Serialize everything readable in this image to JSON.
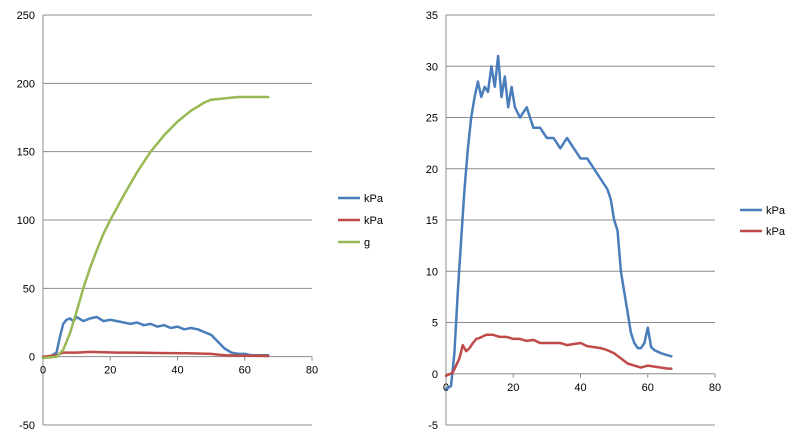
{
  "chart_data": [
    {
      "type": "line",
      "title": "",
      "xlabel": "",
      "ylabel": "",
      "xlim": [
        0,
        80
      ],
      "ylim": [
        -50,
        250
      ],
      "x_ticks": [
        "0",
        "20",
        "40",
        "60",
        "80"
      ],
      "y_ticks": [
        "-50",
        "0",
        "50",
        "100",
        "150",
        "200",
        "250"
      ],
      "grid": "horizontal",
      "legend_position": "right",
      "series": [
        {
          "name": "kPa",
          "color": "#4a7ebb",
          "points": [
            [
              0,
              -1
            ],
            [
              2,
              0
            ],
            [
              4,
              3
            ],
            [
              5,
              14
            ],
            [
              6,
              24
            ],
            [
              7,
              27
            ],
            [
              8,
              28
            ],
            [
              9,
              26
            ],
            [
              10,
              29
            ],
            [
              12,
              26
            ],
            [
              14,
              28
            ],
            [
              16,
              29
            ],
            [
              18,
              26
            ],
            [
              20,
              27
            ],
            [
              22,
              26
            ],
            [
              24,
              25
            ],
            [
              26,
              24
            ],
            [
              28,
              25
            ],
            [
              30,
              23
            ],
            [
              32,
              24
            ],
            [
              34,
              22
            ],
            [
              36,
              23
            ],
            [
              38,
              21
            ],
            [
              40,
              22
            ],
            [
              42,
              20
            ],
            [
              44,
              21
            ],
            [
              46,
              20
            ],
            [
              48,
              18
            ],
            [
              50,
              16
            ],
            [
              52,
              11
            ],
            [
              54,
              6
            ],
            [
              56,
              3
            ],
            [
              58,
              2
            ],
            [
              60,
              2
            ],
            [
              62,
              1
            ],
            [
              64,
              1
            ],
            [
              66,
              1
            ],
            [
              67,
              1
            ]
          ]
        },
        {
          "name": "kPa",
          "color": "#be4b48",
          "points": [
            [
              0,
              0
            ],
            [
              4,
              1
            ],
            [
              5,
              2
            ],
            [
              6,
              3
            ],
            [
              8,
              3
            ],
            [
              10,
              3
            ],
            [
              14,
              3.5
            ],
            [
              18,
              3.2
            ],
            [
              22,
              3
            ],
            [
              26,
              3
            ],
            [
              30,
              2.8
            ],
            [
              34,
              2.7
            ],
            [
              38,
              2.6
            ],
            [
              42,
              2.5
            ],
            [
              46,
              2.3
            ],
            [
              50,
              2
            ],
            [
              52,
              1.5
            ],
            [
              54,
              1
            ],
            [
              58,
              0.8
            ],
            [
              62,
              0.7
            ],
            [
              67,
              0.5
            ]
          ]
        },
        {
          "name": "g",
          "color": "#98b954",
          "points": [
            [
              0,
              -1
            ],
            [
              4,
              0
            ],
            [
              6,
              5
            ],
            [
              8,
              17
            ],
            [
              10,
              33
            ],
            [
              12,
              50
            ],
            [
              14,
              65
            ],
            [
              16,
              78
            ],
            [
              18,
              90
            ],
            [
              20,
              100
            ],
            [
              24,
              118
            ],
            [
              28,
              135
            ],
            [
              32,
              150
            ],
            [
              36,
              162
            ],
            [
              40,
              172
            ],
            [
              44,
              180
            ],
            [
              48,
              186
            ],
            [
              50,
              188
            ],
            [
              54,
              189
            ],
            [
              58,
              190
            ],
            [
              62,
              190
            ],
            [
              67,
              190
            ]
          ]
        }
      ]
    },
    {
      "type": "line",
      "title": "",
      "xlabel": "",
      "ylabel": "",
      "xlim": [
        0,
        80
      ],
      "ylim": [
        -5,
        35
      ],
      "x_ticks": [
        "0",
        "20",
        "40",
        "60",
        "80"
      ],
      "y_ticks": [
        "-5",
        "0",
        "5",
        "10",
        "15",
        "20",
        "25",
        "30",
        "35"
      ],
      "grid": "horizontal",
      "legend_position": "right",
      "series": [
        {
          "name": "kPa",
          "color": "#4a7ebb",
          "points": [
            [
              0,
              -1.5
            ],
            [
              1.5,
              -1.2
            ],
            [
              2.5,
              2
            ],
            [
              3.5,
              8
            ],
            [
              4.5,
              13
            ],
            [
              5.5,
              18
            ],
            [
              6.5,
              22
            ],
            [
              7.5,
              25
            ],
            [
              8.5,
              27
            ],
            [
              9.5,
              28.5
            ],
            [
              10.5,
              27
            ],
            [
              11.5,
              28
            ],
            [
              12.5,
              27.5
            ],
            [
              13.5,
              30
            ],
            [
              14.5,
              28
            ],
            [
              15.5,
              31
            ],
            [
              16.5,
              27
            ],
            [
              17.5,
              29
            ],
            [
              18.5,
              26
            ],
            [
              19.5,
              28
            ],
            [
              20.5,
              26
            ],
            [
              22,
              25
            ],
            [
              24,
              26
            ],
            [
              26,
              24
            ],
            [
              28,
              24
            ],
            [
              30,
              23
            ],
            [
              32,
              23
            ],
            [
              34,
              22
            ],
            [
              36,
              23
            ],
            [
              38,
              22
            ],
            [
              40,
              21
            ],
            [
              42,
              21
            ],
            [
              44,
              20
            ],
            [
              46,
              19
            ],
            [
              48,
              18
            ],
            [
              49,
              17
            ],
            [
              50,
              15
            ],
            [
              51,
              14
            ],
            [
              52,
              10
            ],
            [
              53,
              8
            ],
            [
              54,
              6
            ],
            [
              55,
              4
            ],
            [
              56,
              3
            ],
            [
              57,
              2.5
            ],
            [
              58,
              2.5
            ],
            [
              59,
              3
            ],
            [
              60,
              4.5
            ],
            [
              61,
              2.6
            ],
            [
              62,
              2.3
            ],
            [
              64,
              2
            ],
            [
              66,
              1.8
            ],
            [
              67,
              1.7
            ]
          ]
        },
        {
          "name": "kPa",
          "color": "#be4b48",
          "points": [
            [
              0,
              -0.2
            ],
            [
              2,
              0.1
            ],
            [
              3,
              0.8
            ],
            [
              4,
              1.5
            ],
            [
              5,
              2.8
            ],
            [
              6,
              2.2
            ],
            [
              7,
              2.5
            ],
            [
              8,
              3
            ],
            [
              9,
              3.4
            ],
            [
              10,
              3.5
            ],
            [
              12,
              3.8
            ],
            [
              14,
              3.8
            ],
            [
              16,
              3.6
            ],
            [
              18,
              3.6
            ],
            [
              20,
              3.4
            ],
            [
              22,
              3.4
            ],
            [
              24,
              3.2
            ],
            [
              26,
              3.3
            ],
            [
              28,
              3
            ],
            [
              30,
              3
            ],
            [
              32,
              3
            ],
            [
              34,
              3
            ],
            [
              36,
              2.8
            ],
            [
              38,
              2.9
            ],
            [
              40,
              3
            ],
            [
              42,
              2.7
            ],
            [
              44,
              2.6
            ],
            [
              46,
              2.5
            ],
            [
              48,
              2.3
            ],
            [
              50,
              2
            ],
            [
              52,
              1.5
            ],
            [
              54,
              1
            ],
            [
              56,
              0.8
            ],
            [
              58,
              0.6
            ],
            [
              60,
              0.8
            ],
            [
              62,
              0.7
            ],
            [
              64,
              0.6
            ],
            [
              66,
              0.5
            ],
            [
              67,
              0.5
            ]
          ]
        }
      ]
    }
  ]
}
